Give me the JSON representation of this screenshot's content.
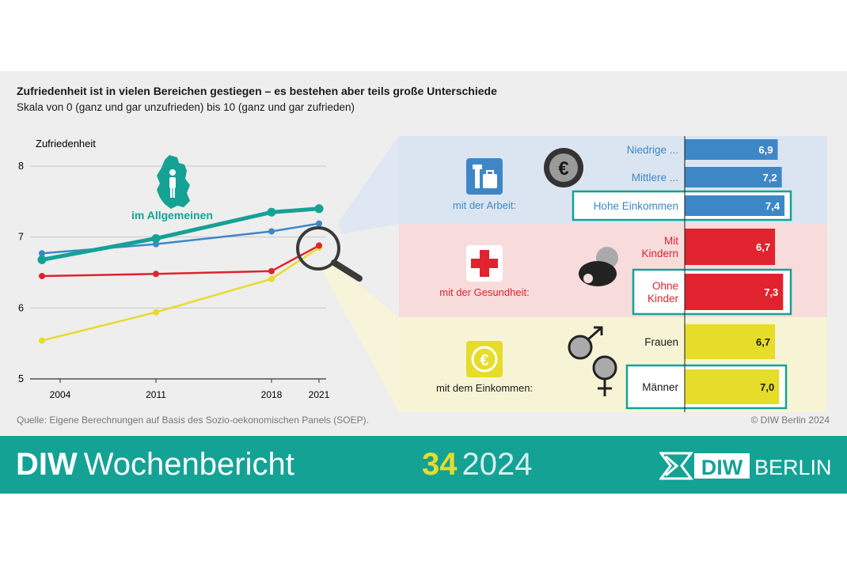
{
  "title": "Zufriedenheit ist in vielen Bereichen gestiegen – es bestehen aber teils große Unterschiede",
  "subtitle": "Skala von 0 (ganz und gar unzufrieden) bis 10 (ganz und gar zufrieden)",
  "source": "Quelle: Eigene Berechnungen auf Basis des Sozio-oekonomischen Panels (SOEP).",
  "copyright": "© DIW Berlin 2024",
  "footer": {
    "brand_bold": "DIW",
    "brand_light": "Wochenbericht",
    "issue_number": "34",
    "issue_year": "2024",
    "logo_diw": "DIW",
    "logo_berlin": "BERLIN"
  },
  "colors": {
    "teal": "#14a295",
    "blue": "#3e87c7",
    "red": "#e0232e",
    "yellow": "#e6dc2a",
    "blue_bg": "#dbe5f2",
    "red_bg": "#f8dcdc",
    "yellow_bg": "#f7f4d6"
  },
  "icons": [
    "germany-map-icon",
    "magnifier-icon",
    "euro-coin-icon",
    "briefcase-icon",
    "red-cross-icon",
    "pacifier-icon",
    "gender-symbols-icon",
    "euro-coin-icon"
  ],
  "chart_data": [
    {
      "type": "line",
      "ylabel": "Zufriedenheit",
      "ylim": [
        5,
        8
      ],
      "yticks": [
        "5",
        "6",
        "7",
        "8"
      ],
      "xticks": [
        "2004",
        "2011",
        "2018",
        "2021"
      ],
      "x": [
        2004,
        2011,
        2018,
        2021
      ],
      "series": [
        {
          "name": "im Allgemeinen",
          "color": "#14a295",
          "values": [
            6.68,
            6.98,
            7.35,
            7.4
          ]
        },
        {
          "color": "#3e87c7",
          "values": [
            6.77,
            6.9,
            7.08,
            7.19
          ]
        },
        {
          "color": "#e0232e",
          "values": [
            6.45,
            6.48,
            6.52,
            6.88
          ]
        },
        {
          "color": "#e6dc2a",
          "values": [
            5.54,
            5.94,
            6.41,
            6.85
          ]
        }
      ],
      "grid": true
    },
    {
      "type": "bar",
      "orientation": "horizontal",
      "groups": [
        {
          "label": "mit der Arbeit:",
          "color": "#3e87c7",
          "icon": "briefcase-icon",
          "categories": [
            "Niedrige ...",
            "Mittlere ...",
            "Hohe Einkommen"
          ],
          "values": [
            6.9,
            7.2,
            7.4
          ],
          "labels": [
            "6,9",
            "7,2",
            "7,4"
          ]
        },
        {
          "label": "mit der Gesundheit:",
          "color": "#e0232e",
          "icon": "red-cross-icon",
          "categories": [
            "Mit Kindern",
            "Ohne Kinder"
          ],
          "values": [
            6.7,
            7.3
          ],
          "labels": [
            "6,7",
            "7,3"
          ]
        },
        {
          "label": "mit dem Einkommen:",
          "color": "#e6dc2a",
          "icon": "euro-coin-icon",
          "categories": [
            "Frauen",
            "Männer"
          ],
          "values": [
            6.7,
            7.0
          ],
          "labels": [
            "6,7",
            "7,0"
          ]
        }
      ]
    }
  ]
}
